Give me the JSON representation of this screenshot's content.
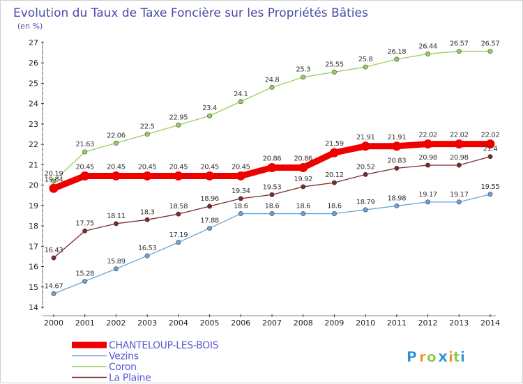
{
  "chart_data": {
    "type": "line",
    "title": "Evolution du Taux de Taxe Foncière sur les Propriétés Bâties",
    "subtitle": "(en %)",
    "x": [
      "2000",
      "2001",
      "2002",
      "2003",
      "2004",
      "2005",
      "2006",
      "2007",
      "2008",
      "2009",
      "2010",
      "2011",
      "2012",
      "2013",
      "2014"
    ],
    "yticks": [
      "14",
      "15",
      "16",
      "17",
      "18",
      "19",
      "20",
      "21",
      "22",
      "23",
      "24",
      "25",
      "26",
      "27"
    ],
    "ylim": [
      14,
      27
    ],
    "grid": false,
    "legend_position": "bottom-left",
    "series": [
      {
        "name": "CHANTELOUP-LES-BOIS",
        "color": "#ee0000",
        "values": [
          19.84,
          20.45,
          20.45,
          20.45,
          20.45,
          20.45,
          20.45,
          20.86,
          20.86,
          21.59,
          21.91,
          21.91,
          22.02,
          22.02,
          22.02
        ],
        "labels": [
          "19.84",
          "20.45",
          "20.45",
          "20.45",
          "20.45",
          "20.45",
          "20.45",
          "20.86",
          "20.86",
          "21.59",
          "21.91",
          "21.91",
          "22.02",
          "22.02",
          "22.02"
        ]
      },
      {
        "name": "Vezins",
        "color": "#6aa3d6",
        "values": [
          14.67,
          15.28,
          15.89,
          16.53,
          17.19,
          17.88,
          18.6,
          18.6,
          18.6,
          18.6,
          18.79,
          18.98,
          19.17,
          19.17,
          19.55
        ],
        "labels": [
          "14.67",
          "15.28",
          "15.89",
          "16.53",
          "17.19",
          "17.88",
          "18.6",
          "18.6",
          "18.6",
          "18.6",
          "18.79",
          "18.98",
          "19.17",
          "19.17",
          "19.55"
        ]
      },
      {
        "name": "Coron",
        "color": "#9acd5a",
        "values": [
          20.19,
          21.63,
          22.06,
          22.5,
          22.95,
          23.4,
          24.1,
          24.8,
          25.3,
          25.55,
          25.8,
          26.18,
          26.44,
          26.57,
          26.57
        ],
        "labels": [
          "20.19",
          "21.63",
          "22.06",
          "22.5",
          "22.95",
          "23.4",
          "24.1",
          "24.8",
          "25.3",
          "25.55",
          "25.8",
          "26.18",
          "26.44",
          "26.57",
          "26.57"
        ]
      },
      {
        "name": "La Plaine",
        "color": "#7a2a2a",
        "values": [
          16.43,
          17.75,
          18.11,
          18.3,
          18.58,
          18.96,
          19.34,
          19.53,
          19.92,
          20.12,
          20.52,
          20.83,
          20.98,
          20.98,
          21.4
        ],
        "labels": [
          "16.43",
          "17.75",
          "18.11",
          "18.3",
          "18.58",
          "18.96",
          "19.34",
          "19.53",
          "19.92",
          "20.12",
          "20.52",
          "20.83",
          "20.98",
          "20.98",
          "21.4"
        ]
      }
    ]
  },
  "logo": {
    "text": "Proxiti",
    "letters": [
      "P",
      "r",
      "o",
      "x",
      "i",
      "t",
      "i"
    ],
    "colors": [
      "#2a8fd8",
      "#f28c28",
      "#8cc83c",
      "#2a8fd8",
      "#f28c28",
      "#8cc83c",
      "#2a8fd8"
    ]
  }
}
